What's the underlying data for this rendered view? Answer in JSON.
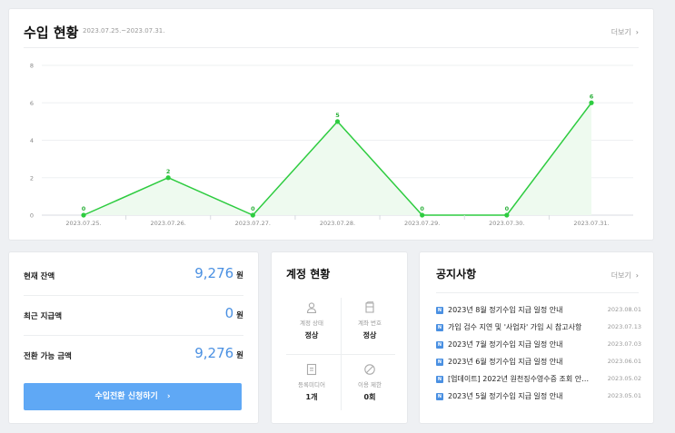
{
  "revenue": {
    "title": "수입 현황",
    "period": "2023.07.25.~2023.07.31.",
    "more": "더보기"
  },
  "chart_data": {
    "type": "area",
    "categories": [
      "2023.07.25.",
      "2023.07.26.",
      "2023.07.27.",
      "2023.07.28.",
      "2023.07.29.",
      "2023.07.30.",
      "2023.07.31."
    ],
    "values": [
      0,
      2,
      0,
      5,
      0,
      0,
      6
    ],
    "yticks": [
      0,
      2,
      4,
      6,
      8
    ],
    "ylim": [
      0,
      8
    ],
    "grid": true,
    "line_color": "#2ecc40",
    "fill_color": "#eefaef"
  },
  "balance": {
    "rows": [
      {
        "label": "현재 잔액",
        "value": "9,276",
        "unit": "원"
      },
      {
        "label": "최근 지급액",
        "value": "0",
        "unit": "원"
      },
      {
        "label": "전환 가능 금액",
        "value": "9,276",
        "unit": "원"
      }
    ],
    "button": "수입전환 신청하기",
    "accent": "#5fa8f5"
  },
  "account": {
    "title": "계정 현황",
    "cells": [
      {
        "label": "계정 상태",
        "value": "정상",
        "icon": "user-icon"
      },
      {
        "label": "계좌 번호",
        "value": "정상",
        "icon": "bank-icon"
      },
      {
        "label": "등록미디어",
        "value": "1개",
        "icon": "document-icon"
      },
      {
        "label": "이용 제한",
        "value": "0회",
        "icon": "block-icon"
      }
    ]
  },
  "notices": {
    "title": "공지사항",
    "more": "더보기",
    "badge": "N",
    "items": [
      {
        "text": "2023년 8월 정기수입 지급 일정 안내",
        "date": "2023.08.01"
      },
      {
        "text": "가입 검수 지연 및 '사업자' 가입 시 참고사항",
        "date": "2023.07.13"
      },
      {
        "text": "2023년 7월 정기수입 지급 일정 안내",
        "date": "2023.07.03"
      },
      {
        "text": "2023년 6월 정기수입 지급 일정 안내",
        "date": "2023.06.01"
      },
      {
        "text": "[업데이트] 2022년 원천징수영수증 조회 안…",
        "date": "2023.05.02"
      },
      {
        "text": "2023년 5월 정기수입 지급 일정 안내",
        "date": "2023.05.01"
      }
    ]
  }
}
